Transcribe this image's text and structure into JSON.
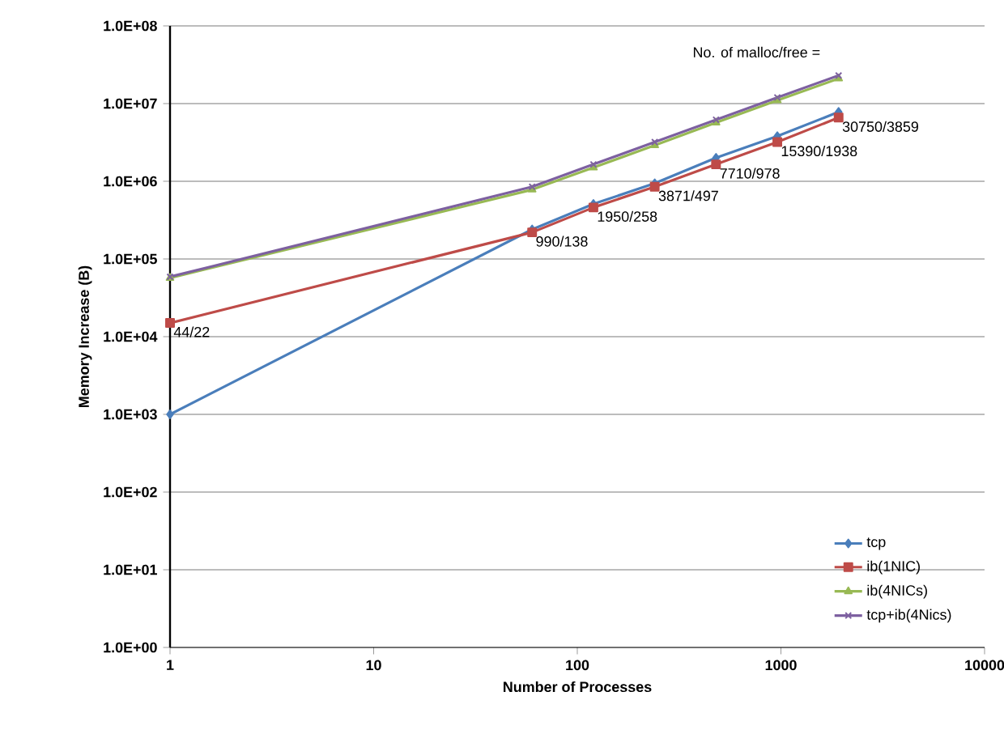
{
  "chart_data": {
    "type": "line",
    "xlabel": "Number of Processes",
    "ylabel": "Memory Increase (B)",
    "x": [
      1,
      60,
      120,
      240,
      480,
      960,
      1920
    ],
    "series": [
      {
        "name": "tcp",
        "color": "#4a7ebb",
        "marker": "diamond",
        "values": [
          1000,
          240000,
          510000,
          940000,
          2000000,
          3800000,
          7800000
        ]
      },
      {
        "name": "ib(1NIC)",
        "color": "#be4b48",
        "marker": "square",
        "values": [
          15000,
          220000,
          460000,
          850000,
          1650000,
          3200000,
          6600000
        ]
      },
      {
        "name": "ib(4NICs)",
        "color": "#98b954",
        "marker": "triangle",
        "values": [
          57000,
          780000,
          1500000,
          2900000,
          5700000,
          11000000,
          21000000
        ]
      },
      {
        "name": "tcp+ib(4Nics)",
        "color": "#7d60a0",
        "marker": "cross",
        "values": [
          59000,
          850000,
          1650000,
          3200000,
          6200000,
          12000000,
          23000000
        ]
      }
    ],
    "log": "xy",
    "xlim": [
      1,
      10000
    ],
    "xticks": [
      1,
      10,
      100,
      1000,
      10000
    ],
    "ylim": [
      1,
      100000000
    ],
    "yticks": [
      {
        "value": 1,
        "label": "1.0E+00"
      },
      {
        "value": 10,
        "label": "1.0E+01"
      },
      {
        "value": 100,
        "label": "1.0E+02"
      },
      {
        "value": 1000,
        "label": "1.0E+03"
      },
      {
        "value": 10000,
        "label": "1.0E+04"
      },
      {
        "value": 100000,
        "label": "1.0E+05"
      },
      {
        "value": 1000000,
        "label": "1.0E+06"
      },
      {
        "value": 10000000,
        "label": "1.0E+07"
      },
      {
        "value": 100000000,
        "label": "1.0E+08"
      }
    ],
    "grid": "y",
    "legend": "bottom right",
    "annotations": [
      "No. of malloc/free =",
      {
        "text": "44/22",
        "x": 1,
        "y": 15000
      },
      {
        "text": "990/138",
        "x": 60,
        "y": 220000
      },
      {
        "text": "1950/258",
        "x": 120,
        "y": 460000
      },
      {
        "text": "3871/497",
        "x": 240,
        "y": 850000
      },
      {
        "text": "7710/978",
        "x": 480,
        "y": 1650000
      },
      {
        "text": "15390/1938",
        "x": 960,
        "y": 3200000
      },
      {
        "text": "30750/3859",
        "x": 1920,
        "y": 6600000
      }
    ]
  }
}
